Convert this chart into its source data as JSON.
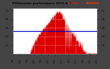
{
  "title": "PV/Inverter performance 2011 & V",
  "legend_actual": "ACTUAL",
  "legend_average": "AVERAGE",
  "bg_color": "#444444",
  "plot_bg_color": "#ffffff",
  "fill_color": "#dd0000",
  "avg_line_color": "#0000cc",
  "grid_color": "#ffffff",
  "text_color": "#000000",
  "title_color": "#000000",
  "legend_actual_color": "#cc2222",
  "legend_average_color": "#ff2200",
  "avg_val": 0.52,
  "ylim": [
    0,
    1.05
  ],
  "xlim": [
    0,
    287
  ],
  "num_points": 288,
  "seed": 1234
}
